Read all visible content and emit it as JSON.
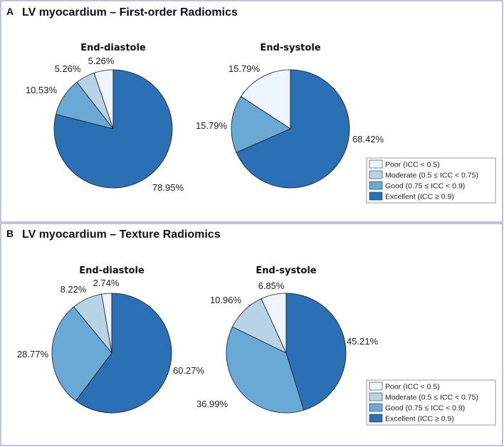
{
  "colors": {
    "poor": "#eef5fd",
    "moderate": "#b8d3e6",
    "good": "#6aa9d5",
    "excellent": "#2b6fb5"
  },
  "legend": [
    {
      "key": "poor",
      "label": "Poor (ICC < 0.5)"
    },
    {
      "key": "moderate",
      "label": "Moderate (0.5 ≤ ICC < 0.75)"
    },
    {
      "key": "good",
      "label": "Good (0.75 ≤ ICC < 0.9)"
    },
    {
      "key": "excellent",
      "label": "Excellent (ICC ≥ 0.9)"
    }
  ],
  "panels": [
    {
      "letter": "A",
      "title": "LV myocardium – First-order Radiomics"
    },
    {
      "letter": "B",
      "title": "LV myocardium – Texture Radiomics"
    }
  ],
  "chart_data": [
    {
      "type": "pie",
      "panel": "A",
      "title": "End-diastole",
      "categories": [
        "Poor",
        "Moderate",
        "Good",
        "Excellent"
      ],
      "values": [
        5.26,
        5.26,
        10.53,
        78.95
      ],
      "labels": [
        "5.26%",
        "5.26%",
        "10.53%",
        "78.95%"
      ]
    },
    {
      "type": "pie",
      "panel": "A",
      "title": "End-systole",
      "categories": [
        "Poor",
        "Moderate",
        "Good",
        "Excellent"
      ],
      "values": [
        15.79,
        0,
        15.79,
        68.42
      ],
      "labels": [
        "15.79%",
        "",
        "15.79%",
        "68.42%"
      ]
    },
    {
      "type": "pie",
      "panel": "B",
      "title": "End-diastole",
      "categories": [
        "Poor",
        "Moderate",
        "Good",
        "Excellent"
      ],
      "values": [
        2.74,
        8.22,
        28.77,
        60.27
      ],
      "labels": [
        "2.74%",
        "8.22%",
        "28.77%",
        "60.27%"
      ]
    },
    {
      "type": "pie",
      "panel": "B",
      "title": "End-systole",
      "categories": [
        "Poor",
        "Moderate",
        "Good",
        "Excellent"
      ],
      "values": [
        6.85,
        10.96,
        36.99,
        45.21
      ],
      "labels": [
        "6.85%",
        "10.96%",
        "36.99%",
        "45.21%"
      ]
    }
  ]
}
